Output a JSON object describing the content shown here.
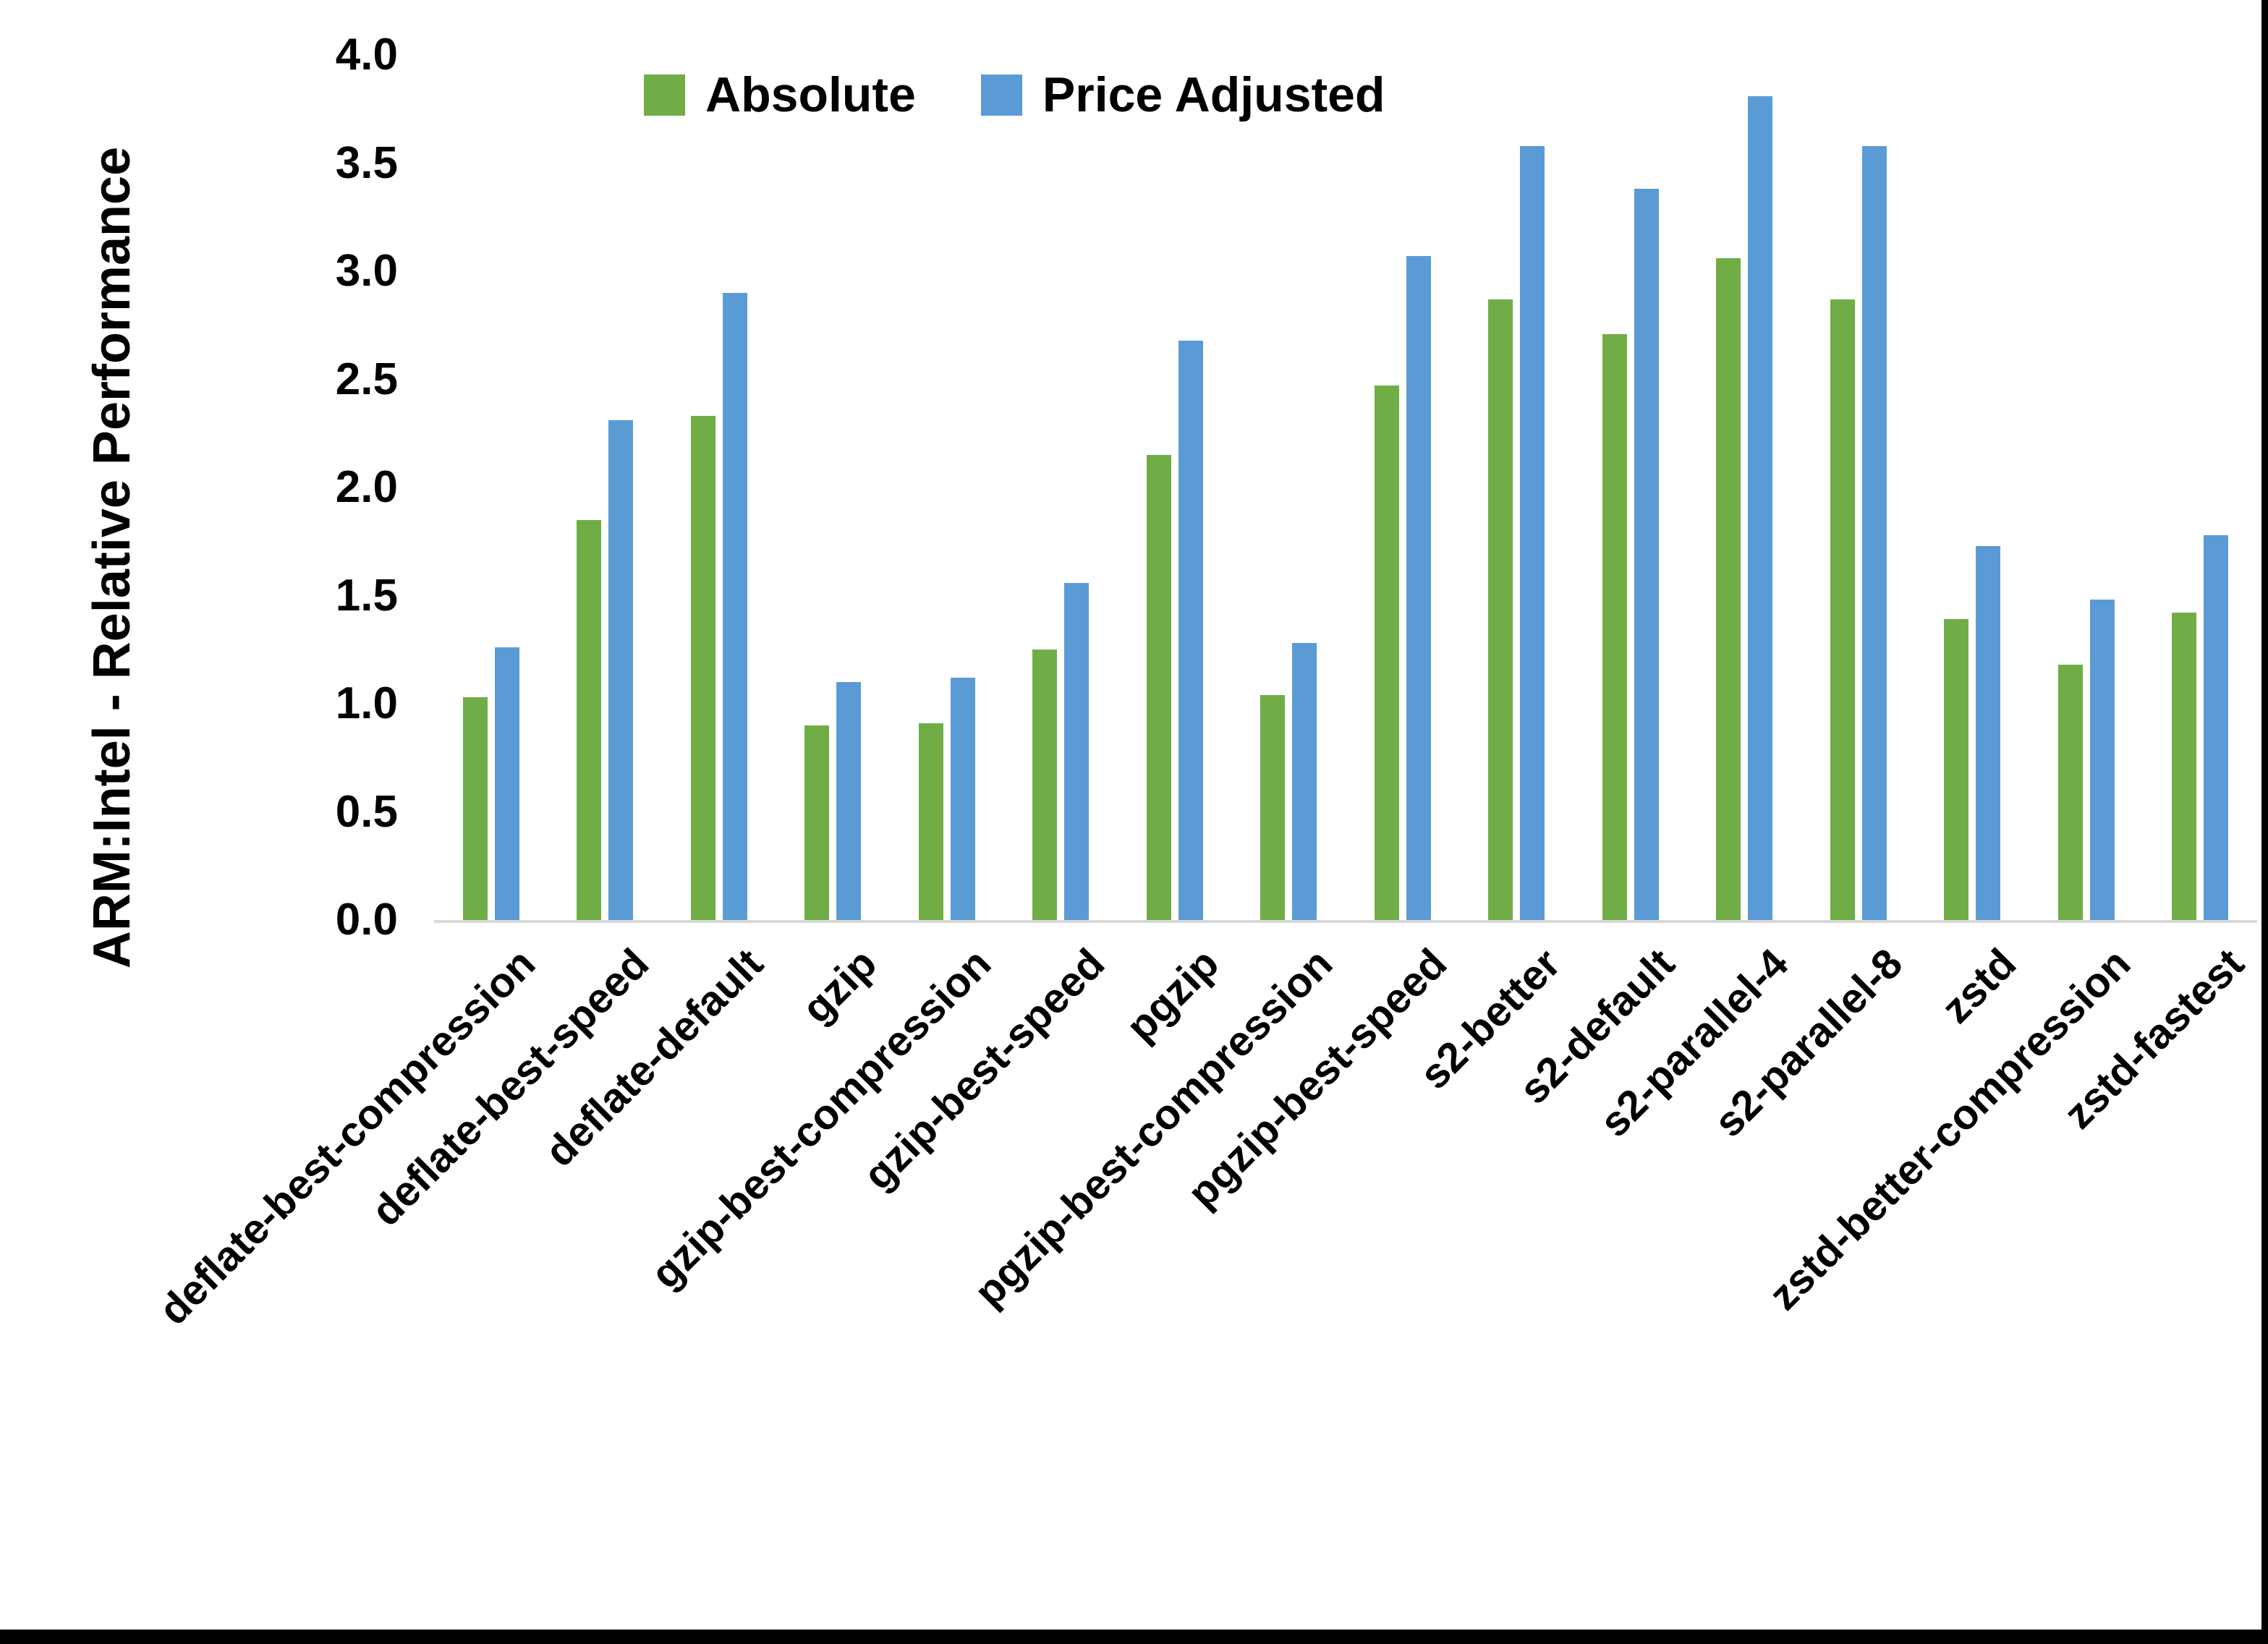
{
  "chart_data": {
    "type": "bar",
    "title": "",
    "xlabel": "",
    "ylabel": "ARM:Intel - Relative Performance",
    "ylim": [
      0.0,
      4.0
    ],
    "ytick_step": 0.5,
    "ytick_labels": [
      "0.0",
      "0.5",
      "1.0",
      "1.5",
      "2.0",
      "2.5",
      "3.0",
      "3.5",
      "4.0"
    ],
    "grid": false,
    "legend_position": "top-center",
    "background_color": "#ffffff",
    "axis_line_color": "#d9d9d9",
    "categories": [
      "deflate-best-compression",
      "deflate-best-speed",
      "deflate-default",
      "gzip",
      "gzip-best-compression",
      "gzip-best-speed",
      "pgzip",
      "pgzip-best-compression",
      "pgzip-best-speed",
      "s2-better",
      "s2-default",
      "s2-parallel-4",
      "s2-parallel-8",
      "zstd",
      "zstd-better-compression",
      "zstd-fastest"
    ],
    "series": [
      {
        "name": "Absolute",
        "color": "#70AD47",
        "values": [
          1.03,
          1.85,
          2.33,
          0.9,
          0.91,
          1.25,
          2.15,
          1.04,
          2.47,
          2.87,
          2.71,
          3.06,
          2.87,
          1.39,
          1.18,
          1.42
        ]
      },
      {
        "name": "Price Adjusted",
        "color": "#5B9BD5",
        "values": [
          1.26,
          2.31,
          2.9,
          1.1,
          1.12,
          1.56,
          2.68,
          1.28,
          3.07,
          3.58,
          3.38,
          3.81,
          3.58,
          1.73,
          1.48,
          1.78
        ]
      }
    ]
  }
}
